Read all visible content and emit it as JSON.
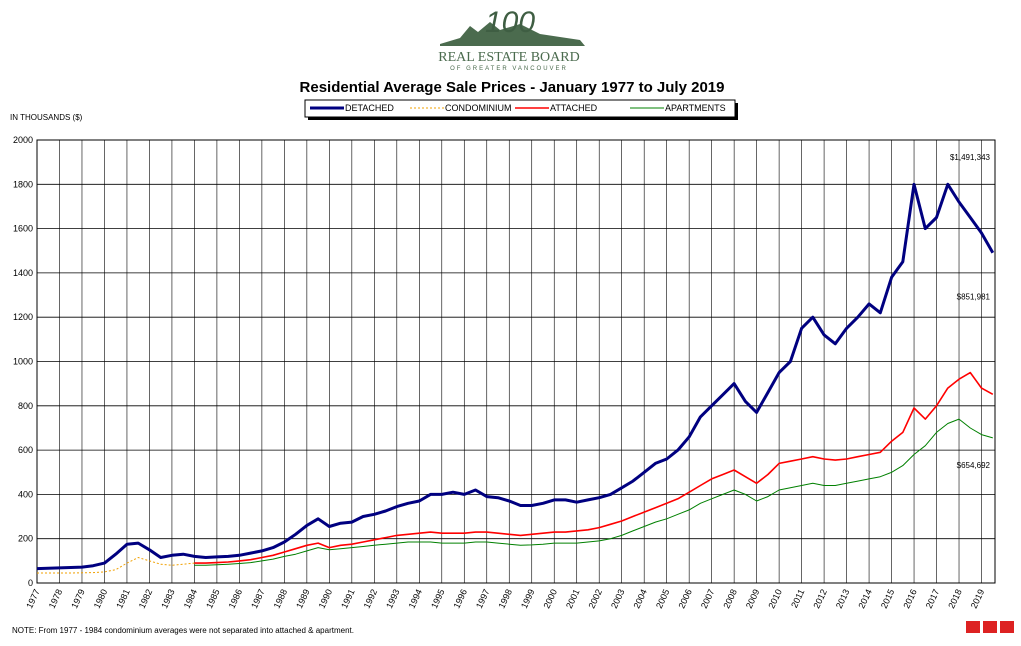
{
  "logo": {
    "number": "100",
    "name": "REAL ESTATE BOARD",
    "sub": "OF GREATER VANCOUVER"
  },
  "chart_data": {
    "type": "line",
    "title": "Residential Average Sale Prices  -  January 1977 to July 2019",
    "y_label": "IN THOUSANDS ($)",
    "note": "NOTE:  From 1977 - 1984 condominium averages were not separated into attached & apartment.",
    "annotations": [
      "$1,491,343",
      "$851,981",
      "$654,692"
    ],
    "grid": true,
    "xlim": [
      1977,
      2019.6
    ],
    "xticks": [
      1977,
      1978,
      1979,
      1980,
      1981,
      1982,
      1983,
      1984,
      1985,
      1986,
      1987,
      1988,
      1989,
      1990,
      1991,
      1992,
      1993,
      1994,
      1995,
      1996,
      1997,
      1998,
      1999,
      2000,
      2001,
      2002,
      2003,
      2004,
      2005,
      2006,
      2007,
      2008,
      2009,
      2010,
      2011,
      2012,
      2013,
      2014,
      2015,
      2016,
      2017,
      2018,
      2019
    ],
    "ylim": [
      0,
      2000
    ],
    "yticks": [
      0,
      200,
      400,
      600,
      800,
      1000,
      1200,
      1400,
      1600,
      1800,
      2000
    ],
    "x": [
      1977,
      1977.5,
      1978,
      1978.5,
      1979,
      1979.5,
      1980,
      1980.5,
      1981,
      1981.5,
      1982,
      1982.5,
      1983,
      1983.5,
      1984,
      1984.5,
      1985,
      1985.5,
      1986,
      1986.5,
      1987,
      1987.5,
      1988,
      1988.5,
      1989,
      1989.5,
      1990,
      1990.5,
      1991,
      1991.5,
      1992,
      1992.5,
      1993,
      1993.5,
      1994,
      1994.5,
      1995,
      1995.5,
      1996,
      1996.5,
      1997,
      1997.5,
      1998,
      1998.5,
      1999,
      1999.5,
      2000,
      2000.5,
      2001,
      2001.5,
      2002,
      2002.5,
      2003,
      2003.5,
      2004,
      2004.5,
      2005,
      2005.5,
      2006,
      2006.5,
      2007,
      2007.5,
      2008,
      2008.5,
      2009,
      2009.5,
      2010,
      2010.5,
      2011,
      2011.5,
      2012,
      2012.5,
      2013,
      2013.5,
      2014,
      2014.5,
      2015,
      2015.5,
      2016,
      2016.5,
      2017,
      2017.5,
      2018,
      2018.5,
      2019,
      2019.5
    ],
    "series": [
      {
        "name": "DETACHED",
        "color": "#000080",
        "values": [
          65,
          67,
          68,
          70,
          72,
          78,
          90,
          130,
          175,
          180,
          150,
          115,
          125,
          130,
          120,
          115,
          118,
          120,
          125,
          135,
          145,
          160,
          185,
          220,
          260,
          290,
          255,
          270,
          275,
          300,
          310,
          325,
          345,
          360,
          370,
          400,
          400,
          410,
          400,
          420,
          390,
          385,
          370,
          350,
          350,
          360,
          375,
          375,
          365,
          375,
          385,
          400,
          430,
          460,
          500,
          540,
          560,
          600,
          660,
          750,
          800,
          850,
          900,
          820,
          770,
          860,
          950,
          1000,
          1150,
          1200,
          1120,
          1080,
          1150,
          1200,
          1260,
          1220,
          1380,
          1450,
          1800,
          1600,
          1650,
          1800,
          1720,
          1650,
          1580,
          1491
        ]
      },
      {
        "name": "CONDOMINIUM",
        "color": "#f0a000",
        "values": [
          45,
          45,
          45,
          45,
          46,
          47,
          50,
          60,
          90,
          115,
          100,
          85,
          80,
          85,
          90,
          null,
          null,
          null,
          null,
          null,
          null,
          null,
          null,
          null,
          null,
          null,
          null,
          null,
          null,
          null,
          null,
          null,
          null,
          null,
          null,
          null,
          null,
          null,
          null,
          null,
          null,
          null,
          null,
          null,
          null,
          null,
          null,
          null,
          null,
          null,
          null,
          null,
          null,
          null,
          null,
          null,
          null,
          null,
          null,
          null,
          null,
          null,
          null,
          null,
          null,
          null,
          null,
          null,
          null,
          null,
          null,
          null,
          null,
          null,
          null,
          null,
          null,
          null,
          null,
          null,
          null,
          null,
          null,
          null,
          null,
          null
        ]
      },
      {
        "name": "ATTACHED",
        "color": "#ff0000",
        "values": [
          null,
          null,
          null,
          null,
          null,
          null,
          null,
          null,
          null,
          null,
          null,
          null,
          null,
          null,
          90,
          90,
          92,
          95,
          100,
          105,
          115,
          125,
          140,
          155,
          170,
          180,
          160,
          170,
          175,
          185,
          195,
          205,
          215,
          220,
          225,
          230,
          225,
          225,
          225,
          230,
          230,
          225,
          220,
          215,
          220,
          225,
          230,
          230,
          235,
          240,
          250,
          265,
          280,
          300,
          320,
          340,
          360,
          380,
          410,
          440,
          470,
          490,
          510,
          480,
          450,
          490,
          540,
          550,
          560,
          570,
          560,
          555,
          560,
          570,
          580,
          590,
          640,
          680,
          790,
          740,
          800,
          880,
          920,
          950,
          880,
          852
        ]
      },
      {
        "name": "APARTMENTS",
        "color": "#008000",
        "values": [
          null,
          null,
          null,
          null,
          null,
          null,
          null,
          null,
          null,
          null,
          null,
          null,
          null,
          null,
          80,
          80,
          82,
          85,
          88,
          92,
          100,
          108,
          120,
          130,
          145,
          160,
          150,
          155,
          160,
          165,
          170,
          175,
          180,
          185,
          185,
          185,
          180,
          180,
          180,
          185,
          185,
          180,
          175,
          170,
          172,
          175,
          180,
          180,
          180,
          185,
          190,
          200,
          215,
          235,
          255,
          275,
          290,
          310,
          330,
          360,
          380,
          400,
          420,
          400,
          370,
          390,
          420,
          430,
          440,
          450,
          440,
          440,
          450,
          460,
          470,
          480,
          500,
          530,
          580,
          620,
          680,
          720,
          740,
          700,
          670,
          655
        ]
      }
    ]
  }
}
